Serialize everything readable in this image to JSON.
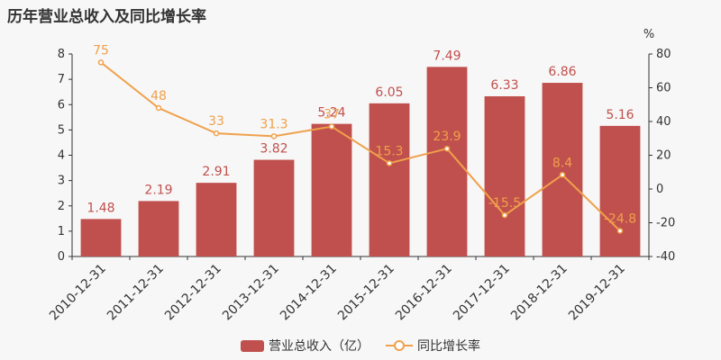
{
  "title": "历年营业总收入及同比增长率",
  "colors": {
    "bar": "#c0504d",
    "line": "#f0a04b",
    "axis_text": "#333333",
    "grid": "#dddddd"
  },
  "legend": {
    "bar_label": "营业总收入（亿）",
    "line_label": "同比增长率"
  },
  "chart_data": {
    "type": "bar",
    "categories": [
      "2010-12-31",
      "2011-12-31",
      "2012-12-31",
      "2013-12-31",
      "2014-12-31",
      "2015-12-31",
      "2016-12-31",
      "2017-12-31",
      "2018-12-31",
      "2019-12-31"
    ],
    "series": [
      {
        "name": "营业总收入（亿）",
        "type": "bar",
        "axis": "left",
        "values": [
          1.48,
          2.19,
          2.91,
          3.82,
          5.24,
          6.05,
          7.49,
          6.33,
          6.86,
          5.16
        ],
        "labels": [
          "1.48",
          "2.19",
          "2.91",
          "3.82",
          "5.24",
          "6.05",
          "7.49",
          "6.33",
          "6.86",
          "5.16"
        ]
      },
      {
        "name": "同比增长率",
        "type": "line",
        "axis": "right",
        "values": [
          75,
          48,
          33,
          31.3,
          37,
          15.3,
          23.9,
          -15.5,
          8.4,
          -24.8
        ],
        "labels": [
          "75",
          "48",
          "33",
          "31.3",
          "37",
          "15.3",
          "23.9",
          "-15.5",
          "8.4",
          "-24.8"
        ]
      }
    ],
    "y_left": {
      "ylim": [
        0,
        8
      ],
      "ticks": [
        0,
        1,
        2,
        3,
        4,
        5,
        6,
        7,
        8
      ]
    },
    "y_right": {
      "ylim": [
        -40,
        80
      ],
      "ticks": [
        -40,
        -20,
        0,
        20,
        40,
        60,
        80
      ],
      "unit": "%"
    },
    "legend_position": "bottom-center",
    "grid": false
  }
}
